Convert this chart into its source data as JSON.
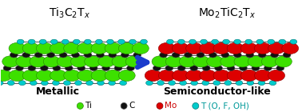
{
  "bg_color": "#f0f0f0",
  "title_left": "Ti$_3$C$_2$T$_x$",
  "title_right": "Mo$_2$TiC$_2$T$_x$",
  "label_left": "Metallic",
  "label_right": "Semiconductor-like",
  "arrow_color": "#1a3ccc",
  "title_fontsize": 10,
  "label_fontsize": 9,
  "legend_fontsize": 7.5,
  "legend_dot_size": 60,
  "colors": {
    "Ti": "#3de000",
    "C": "#111111",
    "Mo": "#dd0000",
    "T": "#00cccc",
    "bond": "#333333"
  },
  "legend_items": [
    {
      "label": "Ti",
      "color": "#3de000",
      "text_color": "#000000",
      "edge": "#228800"
    },
    {
      "label": "C",
      "color": "#111111",
      "text_color": "#000000",
      "edge": "#555555"
    },
    {
      "label": "Mo",
      "color": "#dd0000",
      "text_color": "#cc0000",
      "edge": "#880000"
    },
    {
      "label": "T (O, F, OH)",
      "color": "#00cccc",
      "text_color": "#009999",
      "edge": "#007777"
    }
  ]
}
